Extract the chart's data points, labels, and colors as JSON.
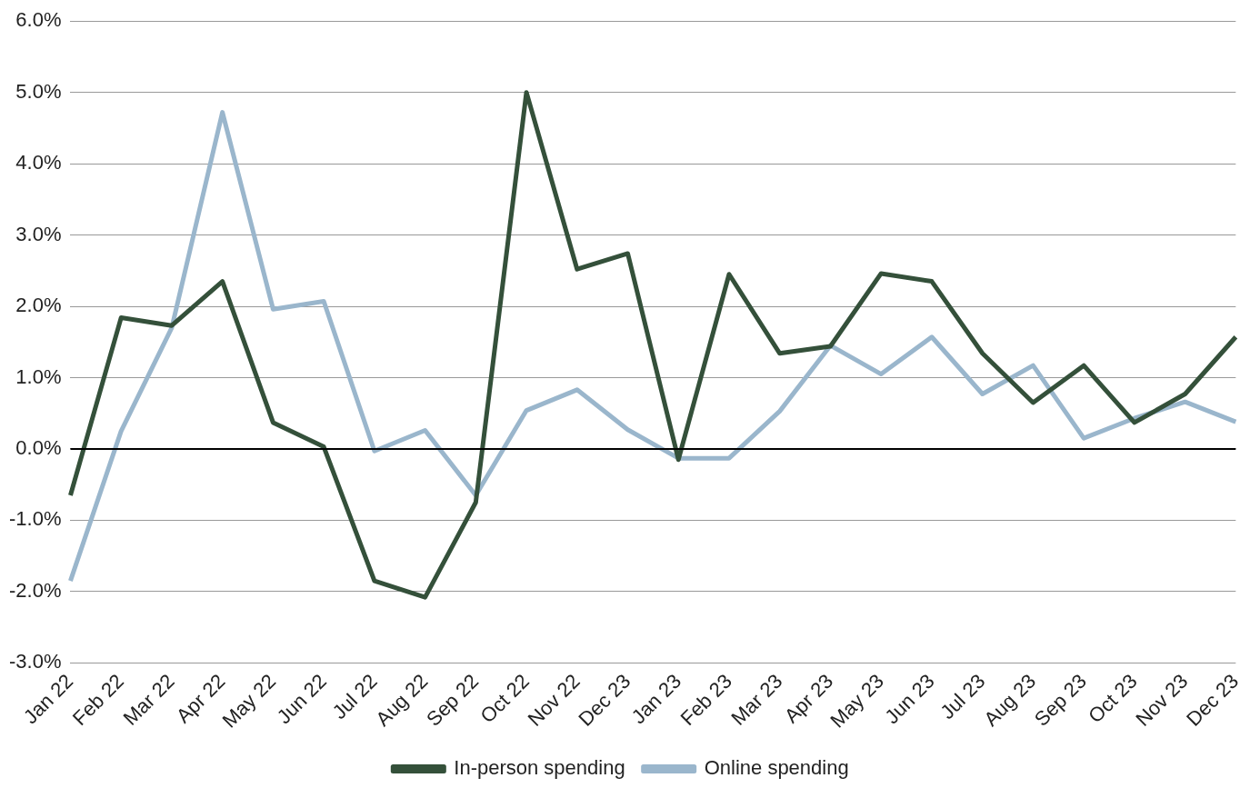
{
  "chart_data": {
    "type": "line",
    "categories": [
      "Jan 22",
      "Feb 22",
      "Mar 22",
      "Apr 22",
      "May 22",
      "Jun 22",
      "Jul 22",
      "Aug 22",
      "Sep 22",
      "Oct 22",
      "Nov 22",
      "Dec 23",
      "Jan 23",
      "Feb 23",
      "Mar 23",
      "Apr 23",
      "May 23",
      "Jun 23",
      "Jul 23",
      "Aug 23",
      "Sep 23",
      "Oct 23",
      "Nov 23",
      "Dec 23"
    ],
    "series": [
      {
        "name": "In-person spending",
        "color": "#34503a",
        "values": [
          -0.65,
          1.84,
          1.73,
          2.35,
          0.37,
          0.03,
          -1.85,
          -2.08,
          -0.75,
          5.0,
          2.52,
          2.74,
          -0.15,
          2.45,
          1.34,
          1.44,
          2.46,
          2.35,
          1.34,
          0.65,
          1.17,
          0.37,
          0.77,
          1.57
        ]
      },
      {
        "name": "Online spending",
        "color": "#9ab6cc",
        "values": [
          -1.85,
          0.25,
          1.7,
          4.72,
          1.96,
          2.07,
          -0.03,
          0.26,
          -0.65,
          0.54,
          0.83,
          0.27,
          -0.13,
          -0.13,
          0.53,
          1.45,
          1.05,
          1.57,
          0.77,
          1.17,
          0.15,
          0.43,
          0.66,
          0.38
        ]
      }
    ],
    "ylim": [
      -3,
      6
    ],
    "yticks": [
      {
        "value": -3,
        "label": "-3.0%"
      },
      {
        "value": -2,
        "label": "-2.0%"
      },
      {
        "value": -1,
        "label": "-1.0%"
      },
      {
        "value": 0,
        "label": "0.0%"
      },
      {
        "value": 1,
        "label": "1.0%"
      },
      {
        "value": 2,
        "label": "2.0%"
      },
      {
        "value": 3,
        "label": "3.0%"
      },
      {
        "value": 4,
        "label": "4.0%"
      },
      {
        "value": 5,
        "label": "5.0%"
      },
      {
        "value": 6,
        "label": "6.0%"
      }
    ],
    "ref_lines": [
      {
        "axis": "y",
        "value": 0,
        "color": "#000000"
      }
    ],
    "grid": "y",
    "legend": "bottom",
    "marker": "none",
    "line_style": "solid"
  }
}
